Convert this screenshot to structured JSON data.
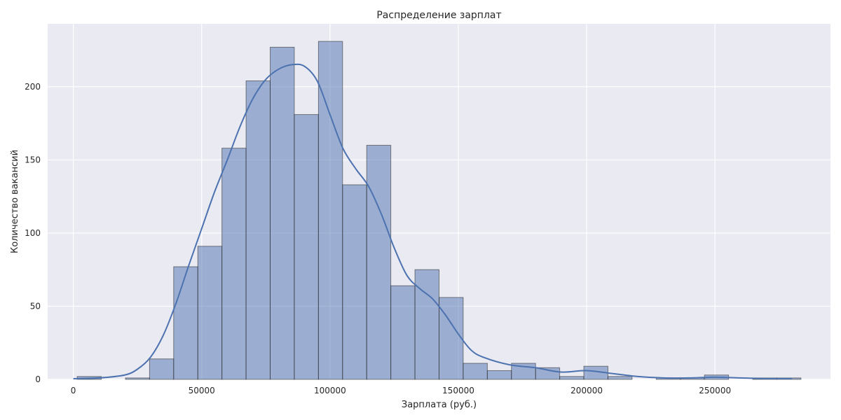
{
  "chart_data": {
    "type": "bar",
    "title": "Распределение зарплат",
    "xlabel": "Зарплата (руб.)",
    "ylabel": "Количество вакансий",
    "xlim": [
      -10000,
      295000
    ],
    "ylim": [
      0,
      243
    ],
    "xticks": [
      0,
      50000,
      100000,
      150000,
      200000,
      250000
    ],
    "yticks": [
      0,
      50,
      100,
      150,
      200
    ],
    "grid": true,
    "bin_width": 9400,
    "bins": [
      {
        "start": 1500,
        "count": 2
      },
      {
        "start": 10900,
        "count": 0
      },
      {
        "start": 20300,
        "count": 1
      },
      {
        "start": 29700,
        "count": 14
      },
      {
        "start": 39100,
        "count": 77
      },
      {
        "start": 48500,
        "count": 91
      },
      {
        "start": 57900,
        "count": 158
      },
      {
        "start": 67300,
        "count": 204
      },
      {
        "start": 76700,
        "count": 227
      },
      {
        "start": 86100,
        "count": 181
      },
      {
        "start": 95500,
        "count": 231
      },
      {
        "start": 104900,
        "count": 133
      },
      {
        "start": 114300,
        "count": 160
      },
      {
        "start": 123700,
        "count": 64
      },
      {
        "start": 133100,
        "count": 75
      },
      {
        "start": 142500,
        "count": 56
      },
      {
        "start": 151900,
        "count": 11
      },
      {
        "start": 161300,
        "count": 6
      },
      {
        "start": 170700,
        "count": 11
      },
      {
        "start": 180100,
        "count": 8
      },
      {
        "start": 189500,
        "count": 2
      },
      {
        "start": 198900,
        "count": 9
      },
      {
        "start": 208300,
        "count": 2
      },
      {
        "start": 217700,
        "count": 0
      },
      {
        "start": 227100,
        "count": 1
      },
      {
        "start": 236500,
        "count": 1
      },
      {
        "start": 245900,
        "count": 3
      },
      {
        "start": 255300,
        "count": 0
      },
      {
        "start": 264700,
        "count": 1
      },
      {
        "start": 274100,
        "count": 1
      }
    ],
    "kde": {
      "x": [
        0,
        10000,
        20000,
        25000,
        30000,
        35000,
        40000,
        45000,
        50000,
        55000,
        60000,
        65000,
        70000,
        75000,
        80000,
        85000,
        90000,
        95000,
        100000,
        105000,
        110000,
        115000,
        120000,
        125000,
        130000,
        135000,
        140000,
        145000,
        150000,
        155000,
        160000,
        170000,
        180000,
        190000,
        200000,
        210000,
        220000,
        230000,
        240000,
        250000,
        260000,
        270000,
        280000
      ],
      "y": [
        0.5,
        1,
        3,
        7,
        15,
        30,
        52,
        78,
        103,
        128,
        150,
        173,
        192,
        205,
        212,
        215,
        214,
        204,
        181,
        158,
        144,
        132,
        113,
        90,
        71,
        62,
        55,
        44,
        31,
        20,
        15,
        10,
        8,
        5,
        6,
        4,
        2,
        1,
        1,
        1.5,
        1,
        0.5,
        0.5
      ]
    },
    "colors": {
      "background": "#eaeaf2",
      "grid": "#ffffff",
      "bar_fill": "#4c72b0",
      "bar_edge": "#262626",
      "kde_line": "#4c72b0"
    }
  }
}
